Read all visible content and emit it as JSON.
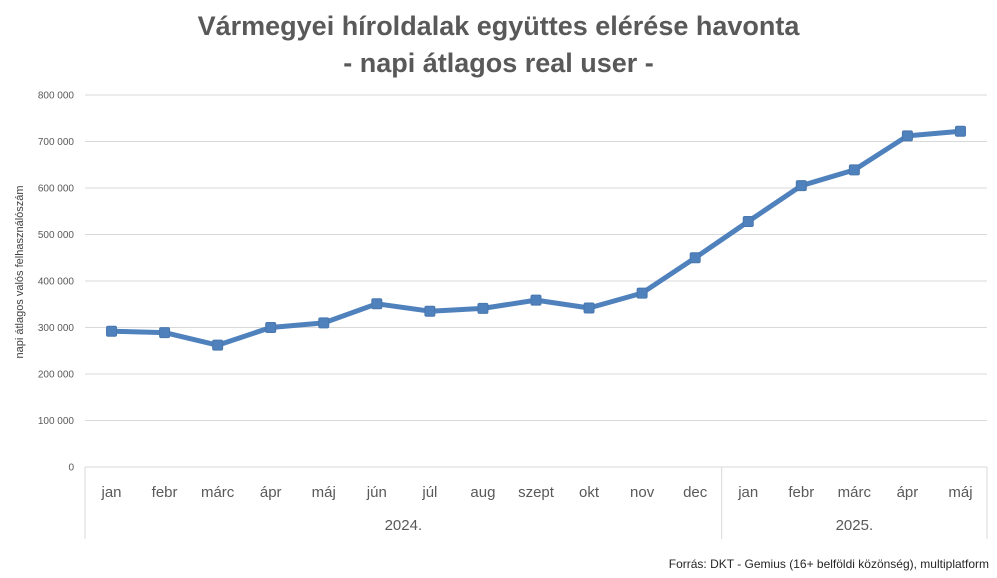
{
  "chart_data": {
    "type": "line",
    "title": [
      "Vármegyei híroldalak együttes elérése havonta",
      "- napi átlagos real user -"
    ],
    "ylabel": "napi átlagos valós felhasználószám",
    "xlabel": "",
    "ylim": [
      0,
      800000
    ],
    "yticks": [
      "0",
      "100 000",
      "200 000",
      "300 000",
      "400 000",
      "500 000",
      "600 000",
      "700 000",
      "800 000"
    ],
    "categories": [
      "jan",
      "febr",
      "márc",
      "ápr",
      "máj",
      "jún",
      "júl",
      "aug",
      "szept",
      "okt",
      "nov",
      "dec",
      "jan",
      "febr",
      "márc",
      "ápr",
      "máj"
    ],
    "groups": [
      {
        "label": "2024.",
        "count": 12
      },
      {
        "label": "2025.",
        "count": 5
      }
    ],
    "series": [
      {
        "values": [
          292000,
          289000,
          262000,
          300000,
          310000,
          351000,
          335000,
          341000,
          359000,
          342000,
          374000,
          450000,
          528000,
          605000,
          639000,
          712000,
          722000
        ]
      }
    ],
    "grid": true,
    "legend": "none",
    "colors": {
      "line": "#4f81bd",
      "grid": "#d9d9d9",
      "text": "#595959"
    }
  },
  "source": "Forrás: DKT - Gemius (16+ belföldi közönség), multiplatform"
}
